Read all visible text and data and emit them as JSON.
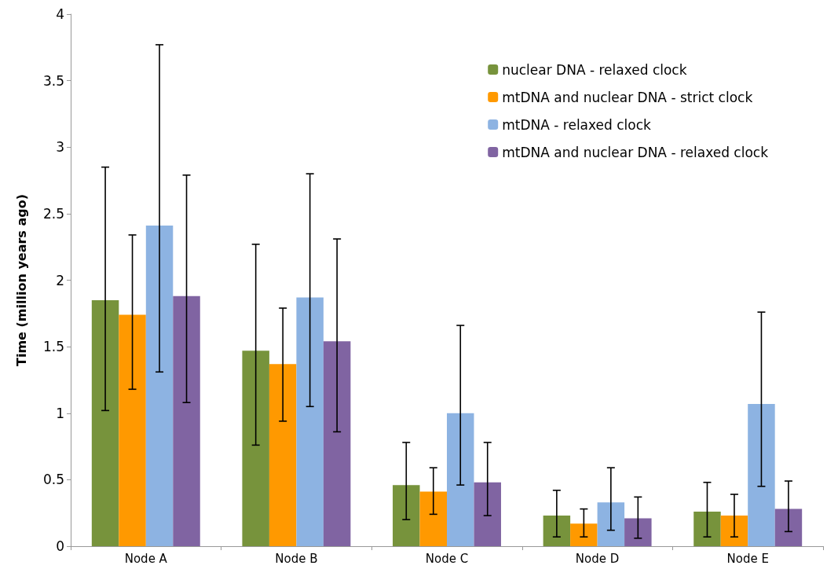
{
  "chart_data": {
    "type": "bar",
    "ylabel": "Time (million years ago)",
    "categories": [
      "Node A",
      "Node B",
      "Node C",
      "Node D",
      "Node E"
    ],
    "series": [
      {
        "name": "nuclear DNA - relaxed clock",
        "color": "#77933c",
        "values": [
          1.85,
          1.47,
          0.46,
          0.23,
          0.26
        ],
        "errors": [
          [
            1.02,
            2.85
          ],
          [
            0.76,
            2.27
          ],
          [
            0.2,
            0.78
          ],
          [
            0.07,
            0.42
          ],
          [
            0.07,
            0.48
          ]
        ]
      },
      {
        "name": "mtDNA and nuclear DNA - strict clock",
        "color": "#ff9900",
        "values": [
          1.74,
          1.37,
          0.41,
          0.17,
          0.23
        ],
        "errors": [
          [
            1.18,
            2.34
          ],
          [
            0.94,
            1.79
          ],
          [
            0.24,
            0.59
          ],
          [
            0.07,
            0.28
          ],
          [
            0.07,
            0.39
          ]
        ]
      },
      {
        "name": "mtDNA - relaxed clock",
        "color": "#8db3e2",
        "values": [
          2.41,
          1.87,
          1.0,
          0.33,
          1.07
        ],
        "errors": [
          [
            1.31,
            3.77
          ],
          [
            1.05,
            2.8
          ],
          [
            0.46,
            1.66
          ],
          [
            0.12,
            0.59
          ],
          [
            0.45,
            1.76
          ]
        ]
      },
      {
        "name": "mtDNA and nuclear DNA - relaxed clock",
        "color": "#8064a2",
        "values": [
          1.88,
          1.54,
          0.48,
          0.21,
          0.28
        ],
        "errors": [
          [
            1.08,
            2.79
          ],
          [
            0.86,
            2.31
          ],
          [
            0.23,
            0.78
          ],
          [
            0.06,
            0.37
          ],
          [
            0.11,
            0.49
          ]
        ]
      }
    ],
    "ylim": [
      0,
      4
    ],
    "yticks": [
      0,
      0.5,
      1,
      1.5,
      2,
      2.5,
      3,
      3.5,
      4
    ],
    "grid": false,
    "legend": "top right"
  }
}
